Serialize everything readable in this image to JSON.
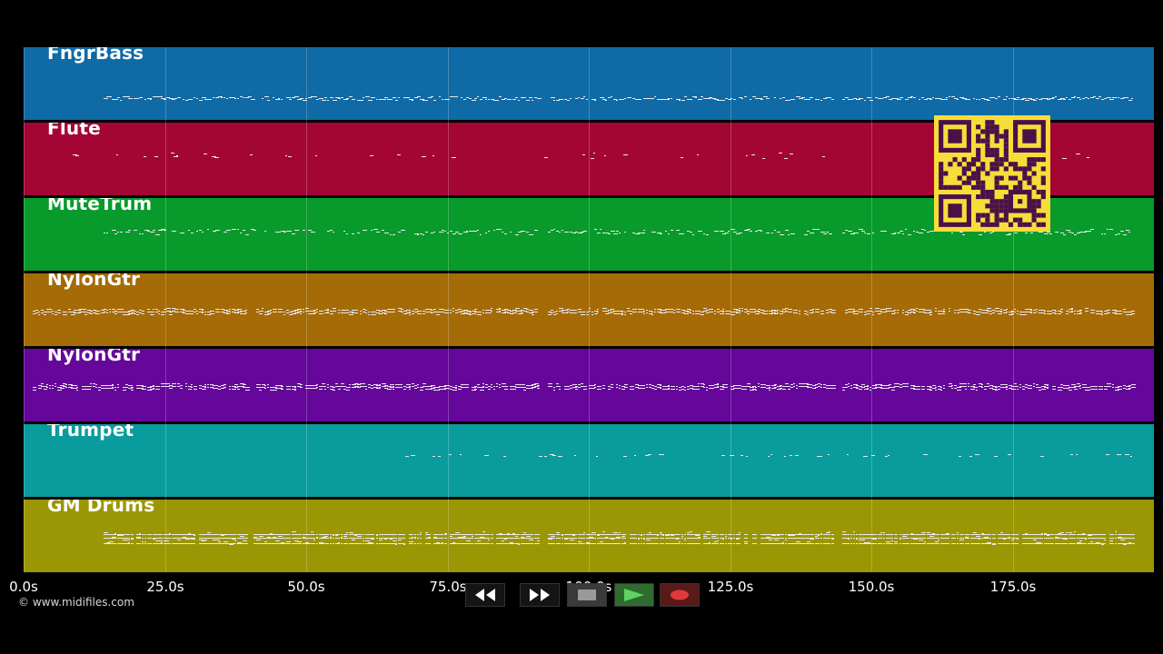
{
  "app": {
    "copyright": "© www.midifiles.com"
  },
  "timeline": {
    "ticks": [
      {
        "seconds": 0,
        "label": "0.0s"
      },
      {
        "seconds": 25,
        "label": "25.0s"
      },
      {
        "seconds": 50,
        "label": "50.0s"
      },
      {
        "seconds": 75,
        "label": "75.0s"
      },
      {
        "seconds": 100,
        "label": "100.0s"
      },
      {
        "seconds": 125,
        "label": "125.0s"
      },
      {
        "seconds": 150,
        "label": "150.0s"
      },
      {
        "seconds": 175,
        "label": "175.0s"
      }
    ]
  },
  "tracks": [
    {
      "name": "FngrBass",
      "color": "#0f6aa6"
    },
    {
      "name": "Flute",
      "color": "#a30634"
    },
    {
      "name": "MuteTrum",
      "color": "#089a2b"
    },
    {
      "name": "NylonGtr",
      "color": "#a56b06"
    },
    {
      "name": "NylonGtr",
      "color": "#65079a"
    },
    {
      "name": "Trumpet",
      "color": "#0a9b9d"
    },
    {
      "name": "GM Drums",
      "color": "#9b9704"
    }
  ],
  "transport": {
    "buttons": [
      {
        "name": "rewind",
        "icon": "rewind-icon"
      },
      {
        "name": "fast-forward",
        "icon": "fast-forward-icon"
      },
      {
        "name": "stop",
        "icon": "stop-icon"
      },
      {
        "name": "play",
        "icon": "play-icon"
      },
      {
        "name": "record",
        "icon": "record-icon"
      }
    ]
  },
  "overlay": {
    "qr_code": "qr-code-icon"
  }
}
